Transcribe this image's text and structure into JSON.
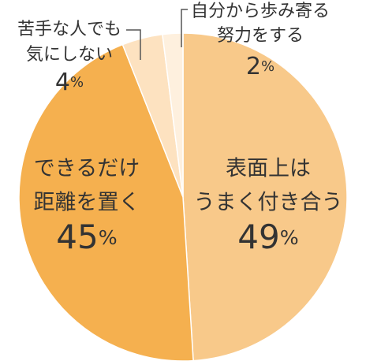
{
  "chart_data": {
    "type": "pie",
    "labels": [
      [
        "表面上は",
        "うまく付き合う"
      ],
      [
        "できるだけ",
        "距離を置く"
      ],
      [
        "苦手な人でも",
        "気にしない"
      ],
      [
        "自分から歩み寄る",
        "努力をする"
      ]
    ],
    "values": [
      49,
      45,
      4,
      2
    ],
    "value_labels": [
      "49%",
      "45%",
      "4%",
      "2%"
    ],
    "colors": [
      "#f8c98a",
      "#f5b04f",
      "#fde2c0",
      "#fef0de"
    ]
  }
}
